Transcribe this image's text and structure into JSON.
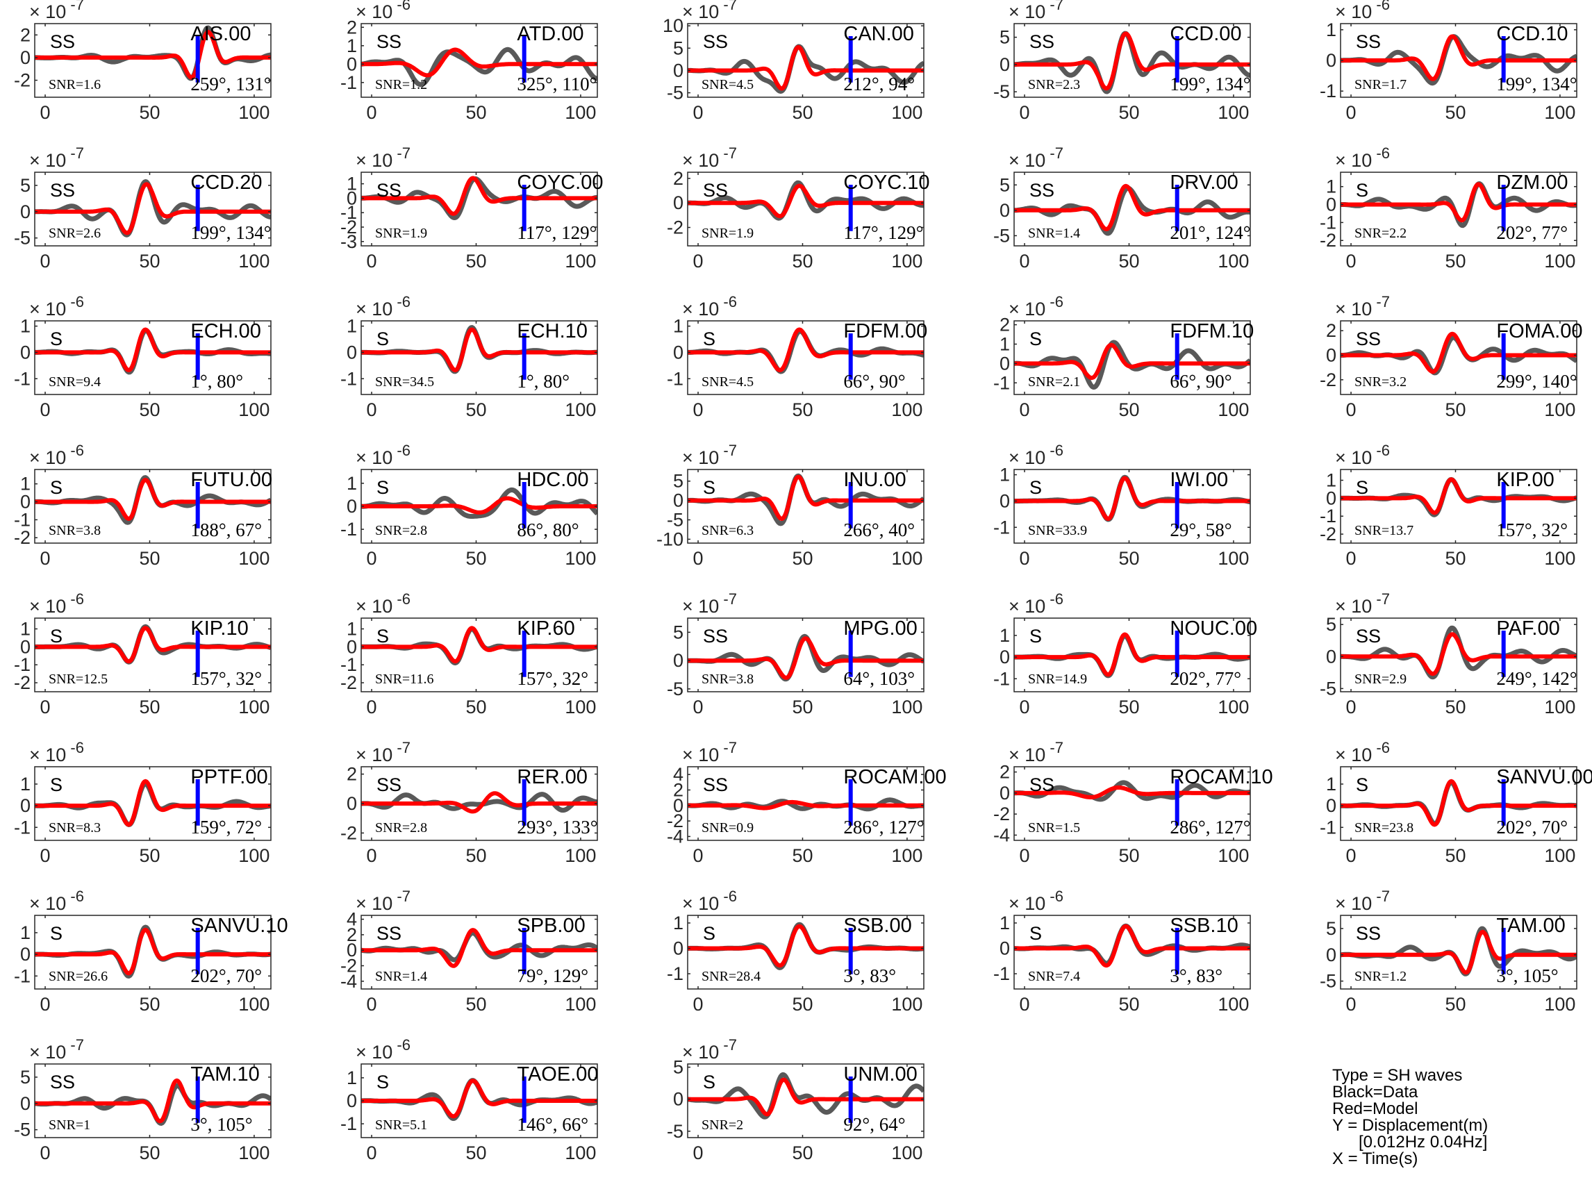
{
  "chart_data": {
    "type": "line",
    "x_ticks": [
      0,
      50,
      100
    ],
    "xlim": [
      -5,
      108
    ],
    "colors": {
      "data": "#595959",
      "model": "#ff0000",
      "marker": "#0000ff",
      "axis": "#262626"
    },
    "legend": {
      "lines": [
        "Type = SH waves",
        "Black=Data",
        "Red=Model",
        "Y = Displacement(m)",
        "[0.012Hz 0.04Hz]",
        "X = Time(s)"
      ]
    },
    "panels": [
      {
        "station": "AIS.00",
        "phase": "SS",
        "snr": "SNR=1.6",
        "angles": "259°, 131°",
        "exp": "-7",
        "ylim": [
          -3.5,
          3
        ],
        "yticks": [
          -2,
          0,
          2
        ],
        "marker_x": 73,
        "amp": 2.6,
        "center": 75,
        "width": 6,
        "noise": 0.15
      },
      {
        "station": "ATD.00",
        "phase": "SS",
        "snr": "SNR=1.2",
        "angles": "325°, 110°",
        "exp": "-6",
        "ylim": [
          -1.8,
          2.2
        ],
        "yticks": [
          -1,
          0,
          1,
          2
        ],
        "marker_x": 73,
        "amp": 0.9,
        "center": 35,
        "width": 10,
        "noise": 0.9
      },
      {
        "station": "CAN.00",
        "phase": "SS",
        "snr": "SNR=4.5",
        "angles": "212°, 94°",
        "exp": "-7",
        "ylim": [
          -6,
          10.5
        ],
        "yticks": [
          -5,
          0,
          5,
          10
        ],
        "marker_x": 73,
        "amp": 6,
        "center": 45,
        "width": 6,
        "noise": 0.5
      },
      {
        "station": "CCD.00",
        "phase": "SS",
        "snr": "SNR=2.3",
        "angles": "199°, 134°",
        "exp": "-7",
        "ylim": [
          -6,
          7.5
        ],
        "yticks": [
          -5,
          0,
          5
        ],
        "marker_x": 73,
        "amp": 6.5,
        "center": 45,
        "width": 7,
        "noise": 0.35
      },
      {
        "station": "CCD.10",
        "phase": "SS",
        "snr": "SNR=1.7",
        "angles": "199°, 134°",
        "exp": "-6",
        "ylim": [
          -1.2,
          1.2
        ],
        "yticks": [
          -1,
          0,
          1
        ],
        "marker_x": 73,
        "amp": 0.9,
        "center": 45,
        "width": 7,
        "noise": 0.4
      },
      {
        "station": "CCD.20",
        "phase": "SS",
        "snr": "SNR=2.6",
        "angles": "199°, 134°",
        "exp": "-7",
        "ylim": [
          -6.5,
          7.5
        ],
        "yticks": [
          -5,
          0,
          5
        ],
        "marker_x": 73,
        "amp": 6,
        "center": 45,
        "width": 7,
        "noise": 0.3
      },
      {
        "station": "COYC.00",
        "phase": "SS",
        "snr": "SNR=1.9",
        "angles": "117°, 129°",
        "exp": "-7",
        "ylim": [
          -3.3,
          1.8
        ],
        "yticks": [
          -3,
          -2,
          -1,
          0,
          1
        ],
        "marker_x": 73,
        "amp": 1.6,
        "center": 45,
        "width": 7,
        "noise": 0.4
      },
      {
        "station": "COYC.10",
        "phase": "SS",
        "snr": "SNR=1.9",
        "angles": "117°, 129°",
        "exp": "-7",
        "ylim": [
          -3.5,
          2.5
        ],
        "yticks": [
          -2,
          0,
          2
        ],
        "marker_x": 73,
        "amp": 1.6,
        "center": 45,
        "width": 7,
        "noise": 0.4
      },
      {
        "station": "DRV.00",
        "phase": "SS",
        "snr": "SNR=1.4",
        "angles": "201°, 124°",
        "exp": "-7",
        "ylim": [
          -7,
          7.5
        ],
        "yticks": [
          -5,
          0,
          5
        ],
        "marker_x": 73,
        "amp": 5.5,
        "center": 45,
        "width": 7,
        "noise": 0.35
      },
      {
        "station": "DZM.00",
        "phase": "S",
        "snr": "SNR=2.2",
        "angles": "202°, 77°",
        "exp": "-6",
        "ylim": [
          -2.3,
          1.8
        ],
        "yticks": [
          -2,
          -1,
          0,
          1
        ],
        "marker_x": 73,
        "amp": 1.3,
        "center": 58,
        "width": 6,
        "noise": 0.35
      },
      {
        "station": "ECH.00",
        "phase": "S",
        "snr": "SNR=9.4",
        "angles": "1°, 80°",
        "exp": "-6",
        "ylim": [
          -1.6,
          1.2
        ],
        "yticks": [
          -1,
          0,
          1
        ],
        "marker_x": 73,
        "amp": 1,
        "center": 45,
        "width": 6,
        "noise": 0.12
      },
      {
        "station": "ECH.10",
        "phase": "S",
        "snr": "SNR=34.5",
        "angles": "1°, 80°",
        "exp": "-6",
        "ylim": [
          -1.6,
          1.2
        ],
        "yticks": [
          -1,
          0,
          1
        ],
        "marker_x": 73,
        "amp": 1,
        "center": 45,
        "width": 6,
        "noise": 0.08
      },
      {
        "station": "FDFM.00",
        "phase": "S",
        "snr": "SNR=4.5",
        "angles": "66°, 90°",
        "exp": "-6",
        "ylim": [
          -1.6,
          1.2
        ],
        "yticks": [
          -1,
          0,
          1
        ],
        "marker_x": 73,
        "amp": 1,
        "center": 45,
        "width": 7,
        "noise": 0.18
      },
      {
        "station": "FDFM.10",
        "phase": "S",
        "snr": "SNR=2.1",
        "angles": "66°, 90°",
        "exp": "-6",
        "ylim": [
          -1.6,
          2.2
        ],
        "yticks": [
          -1,
          0,
          1,
          2
        ],
        "marker_x": 73,
        "amp": 1.1,
        "center": 38,
        "width": 7,
        "noise": 0.6
      },
      {
        "station": "FOMA.00",
        "phase": "SS",
        "snr": "SNR=3.2",
        "angles": "299°, 140°",
        "exp": "-7",
        "ylim": [
          -3.2,
          2.8
        ],
        "yticks": [
          -2,
          0,
          2
        ],
        "marker_x": 73,
        "amp": 2,
        "center": 45,
        "width": 7,
        "noise": 0.35
      },
      {
        "station": "FUTU.00",
        "phase": "S",
        "snr": "SNR=3.8",
        "angles": "188°, 67°",
        "exp": "-6",
        "ylim": [
          -2.3,
          1.8
        ],
        "yticks": [
          -2,
          -1,
          0,
          1
        ],
        "marker_x": 73,
        "amp": 1.4,
        "center": 45,
        "width": 6,
        "noise": 0.25
      },
      {
        "station": "HDC.00",
        "phase": "S",
        "snr": "SNR=2.8",
        "angles": "86°, 80°",
        "exp": "-6",
        "ylim": [
          -1.6,
          1.6
        ],
        "yticks": [
          -1,
          0,
          1
        ],
        "marker_x": 73,
        "amp": 0.4,
        "center": 60,
        "width": 10,
        "noise": 1.2
      },
      {
        "station": "INU.00",
        "phase": "S",
        "snr": "SNR=6.3",
        "angles": "266°, 40°",
        "exp": "-7",
        "ylim": [
          -11,
          8
        ],
        "yticks": [
          -10,
          -5,
          0,
          5
        ],
        "marker_x": 73,
        "amp": 7,
        "center": 45,
        "width": 6,
        "noise": 0.3
      },
      {
        "station": "IWI.00",
        "phase": "S",
        "snr": "SNR=33.9",
        "angles": "29°, 58°",
        "exp": "-6",
        "ylim": [
          -1.6,
          1.2
        ],
        "yticks": [
          -1,
          0,
          1
        ],
        "marker_x": 73,
        "amp": 1,
        "center": 45,
        "width": 6,
        "noise": 0.08
      },
      {
        "station": "KIP.00",
        "phase": "S",
        "snr": "SNR=13.7",
        "angles": "157°, 32°",
        "exp": "-6",
        "ylim": [
          -2.5,
          1.6
        ],
        "yticks": [
          -2,
          -1,
          0,
          1
        ],
        "marker_x": 73,
        "amp": 1.2,
        "center": 45,
        "width": 6,
        "noise": 0.15
      },
      {
        "station": "KIP.10",
        "phase": "S",
        "snr": "SNR=12.5",
        "angles": "157°, 32°",
        "exp": "-6",
        "ylim": [
          -2.5,
          1.6
        ],
        "yticks": [
          -2,
          -1,
          0,
          1
        ],
        "marker_x": 73,
        "amp": 1.2,
        "center": 45,
        "width": 6,
        "noise": 0.15
      },
      {
        "station": "KIP.60",
        "phase": "S",
        "snr": "SNR=11.6",
        "angles": "157°, 32°",
        "exp": "-6",
        "ylim": [
          -2.5,
          1.6
        ],
        "yticks": [
          -2,
          -1,
          0,
          1
        ],
        "marker_x": 73,
        "amp": 1.2,
        "center": 45,
        "width": 6,
        "noise": 0.15
      },
      {
        "station": "MPG.00",
        "phase": "SS",
        "snr": "SNR=3.8",
        "angles": "64°, 103°",
        "exp": "-7",
        "ylim": [
          -5.5,
          7.5
        ],
        "yticks": [
          -5,
          0,
          5
        ],
        "marker_x": 73,
        "amp": 4.5,
        "center": 48,
        "width": 7,
        "noise": 0.3
      },
      {
        "station": "NOUC.00",
        "phase": "S",
        "snr": "SNR=14.9",
        "angles": "202°, 77°",
        "exp": "-6",
        "ylim": [
          -1.6,
          1.8
        ],
        "yticks": [
          -1,
          0,
          1
        ],
        "marker_x": 73,
        "amp": 1.2,
        "center": 45,
        "width": 6,
        "noise": 0.12
      },
      {
        "station": "PAF.00",
        "phase": "SS",
        "snr": "SNR=2.9",
        "angles": "249°, 142°",
        "exp": "-7",
        "ylim": [
          -5.5,
          6
        ],
        "yticks": [
          -5,
          0,
          5
        ],
        "marker_x": 73,
        "amp": 4,
        "center": 45,
        "width": 7,
        "noise": 0.35
      },
      {
        "station": "PPTF.00",
        "phase": "S",
        "snr": "SNR=8.3",
        "angles": "159°, 72°",
        "exp": "-6",
        "ylim": [
          -1.6,
          1.8
        ],
        "yticks": [
          -1,
          0,
          1
        ],
        "marker_x": 73,
        "amp": 1.3,
        "center": 45,
        "width": 6,
        "noise": 0.15
      },
      {
        "station": "RER.00",
        "phase": "SS",
        "snr": "SNR=2.8",
        "angles": "293°, 133°",
        "exp": "-7",
        "ylim": [
          -2.5,
          2.5
        ],
        "yticks": [
          -2,
          0,
          2
        ],
        "marker_x": 73,
        "amp": 0.8,
        "center": 55,
        "width": 8,
        "noise": 1.0
      },
      {
        "station": "ROCAM.00",
        "phase": "SS",
        "snr": "SNR=0.9",
        "angles": "286°, 127°",
        "exp": "-7",
        "ylim": [
          -4.5,
          5
        ],
        "yticks": [
          -4,
          -2,
          0,
          2,
          4
        ],
        "marker_x": 73,
        "amp": 0.5,
        "center": 40,
        "width": 10,
        "noise": 1.5
      },
      {
        "station": "ROCAM.10",
        "phase": "SS",
        "snr": "SNR=1.5",
        "angles": "286°, 127°",
        "exp": "-7",
        "ylim": [
          -4.5,
          2.5
        ],
        "yticks": [
          -4,
          -2,
          0,
          2
        ],
        "marker_x": 73,
        "amp": 0.6,
        "center": 40,
        "width": 10,
        "noise": 1.4
      },
      {
        "station": "SANVU.00",
        "phase": "S",
        "snr": "SNR=23.8",
        "angles": "202°, 70°",
        "exp": "-6",
        "ylim": [
          -1.6,
          1.8
        ],
        "yticks": [
          -1,
          0,
          1
        ],
        "marker_x": 73,
        "amp": 1.3,
        "center": 45,
        "width": 6,
        "noise": 0.1
      },
      {
        "station": "SANVU.10",
        "phase": "S",
        "snr": "SNR=26.6",
        "angles": "202°, 70°",
        "exp": "-6",
        "ylim": [
          -1.6,
          1.8
        ],
        "yticks": [
          -1,
          0,
          1
        ],
        "marker_x": 73,
        "amp": 1.3,
        "center": 45,
        "width": 6,
        "noise": 0.1
      },
      {
        "station": "SPB.00",
        "phase": "SS",
        "snr": "SNR=1.4",
        "angles": "79°, 129°",
        "exp": "-7",
        "ylim": [
          -5,
          4.5
        ],
        "yticks": [
          -4,
          -2,
          0,
          2,
          4
        ],
        "marker_x": 73,
        "amp": 3,
        "center": 45,
        "width": 7,
        "noise": 0.35
      },
      {
        "station": "SSB.00",
        "phase": "S",
        "snr": "SNR=28.4",
        "angles": "3°, 83°",
        "exp": "-6",
        "ylim": [
          -1.6,
          1.3
        ],
        "yticks": [
          -1,
          0,
          1
        ],
        "marker_x": 73,
        "amp": 1,
        "center": 45,
        "width": 7,
        "noise": 0.08
      },
      {
        "station": "SSB.10",
        "phase": "S",
        "snr": "SNR=7.4",
        "angles": "3°, 83°",
        "exp": "-6",
        "ylim": [
          -1.6,
          1.3
        ],
        "yticks": [
          -1,
          0,
          1
        ],
        "marker_x": 73,
        "amp": 1,
        "center": 45,
        "width": 7,
        "noise": 0.15
      },
      {
        "station": "TAM.00",
        "phase": "SS",
        "snr": "SNR=1.2",
        "angles": "3°, 105°",
        "exp": "-7",
        "ylim": [
          -6.5,
          7.5
        ],
        "yticks": [
          -5,
          0,
          5
        ],
        "marker_x": 73,
        "amp": 5,
        "center": 60,
        "width": 6,
        "noise": 0.3
      },
      {
        "station": "TAM.10",
        "phase": "SS",
        "snr": "SNR=1",
        "angles": "3°, 105°",
        "exp": "-7",
        "ylim": [
          -6.5,
          7.5
        ],
        "yticks": [
          -5,
          0,
          5
        ],
        "marker_x": 73,
        "amp": 5,
        "center": 60,
        "width": 6,
        "noise": 0.3
      },
      {
        "station": "TAOE.00",
        "phase": "S",
        "snr": "SNR=5.1",
        "angles": "146°, 66°",
        "exp": "-6",
        "ylim": [
          -1.6,
          1.6
        ],
        "yticks": [
          -1,
          0,
          1
        ],
        "marker_x": 73,
        "amp": 1,
        "center": 45,
        "width": 7,
        "noise": 0.2
      },
      {
        "station": "UNM.00",
        "phase": "S",
        "snr": "SNR=2",
        "angles": "92°, 64°",
        "exp": "-7",
        "ylim": [
          -6,
          5.5
        ],
        "yticks": [
          -5,
          0,
          5
        ],
        "marker_x": 73,
        "amp": 3.5,
        "center": 38,
        "width": 6,
        "noise": 0.6
      }
    ]
  }
}
